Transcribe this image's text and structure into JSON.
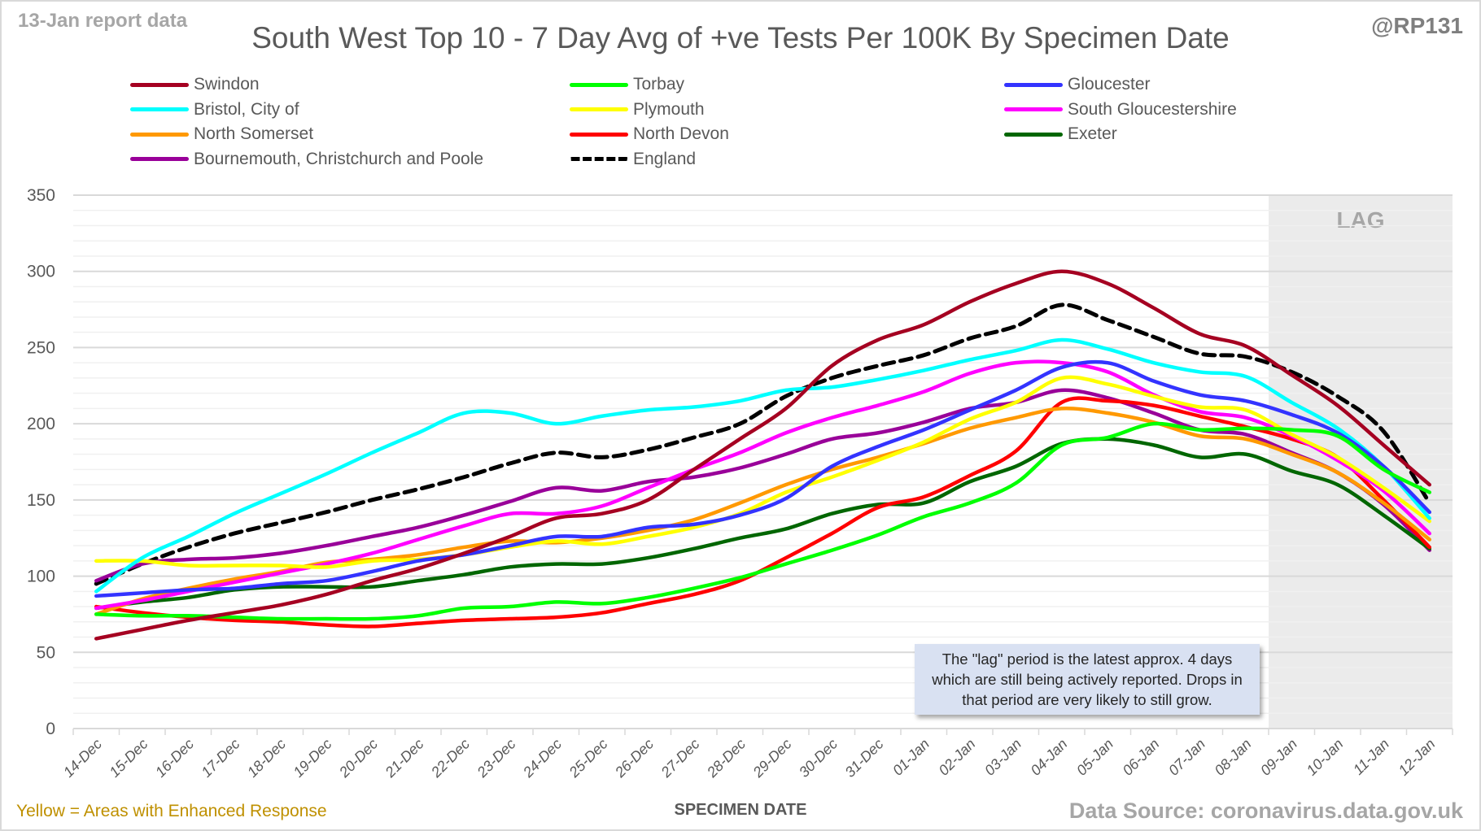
{
  "header": {
    "report_note": "13-Jan report data",
    "handle": "@RP131"
  },
  "footer": {
    "enhanced_note": "Yellow = Areas with Enhanced Response",
    "source": "Data Source: coronavirus.data.gov.uk"
  },
  "annotation": {
    "text": "The \"lag\" period is the latest approx. 4 days which are still being actively reported. Drops in that period are very likely to still grow."
  },
  "chart_data": {
    "type": "line",
    "title": "South West Top 10 - 7 Day Avg of +ve Tests Per 100K By Specimen Date",
    "xlabel": "SPECIMEN DATE",
    "ylabel": "",
    "ylim": [
      0,
      350
    ],
    "yticks": [
      "0",
      "50",
      "100",
      "150",
      "200",
      "250",
      "300",
      "350"
    ],
    "grid": true,
    "legend_position": "top",
    "lag_region": {
      "label": "LAG",
      "from": "09-Jan",
      "to": "12-Jan"
    },
    "x": [
      "14-Dec",
      "15-Dec",
      "16-Dec",
      "17-Dec",
      "18-Dec",
      "19-Dec",
      "20-Dec",
      "21-Dec",
      "22-Dec",
      "23-Dec",
      "24-Dec",
      "25-Dec",
      "26-Dec",
      "27-Dec",
      "28-Dec",
      "29-Dec",
      "30-Dec",
      "31-Dec",
      "01-Jan",
      "02-Jan",
      "03-Jan",
      "04-Jan",
      "05-Jan",
      "06-Jan",
      "07-Jan",
      "08-Jan",
      "09-Jan",
      "10-Jan",
      "11-Jan",
      "12-Jan"
    ],
    "series": [
      {
        "name": "Swindon",
        "color": "#a50021",
        "dashed": false,
        "values": [
          59,
          65,
          71,
          76,
          81,
          88,
          97,
          105,
          115,
          126,
          138,
          141,
          150,
          170,
          190,
          210,
          238,
          255,
          265,
          280,
          292,
          300,
          292,
          276,
          259,
          251,
          232,
          212,
          186,
          160
        ]
      },
      {
        "name": "Torbay",
        "color": "#00ff00",
        "dashed": false,
        "values": [
          75,
          74,
          74,
          73,
          72,
          72,
          72,
          74,
          79,
          80,
          83,
          82,
          86,
          92,
          99,
          108,
          117,
          127,
          139,
          148,
          161,
          186,
          191,
          200,
          196,
          197,
          196,
          192,
          170,
          155
        ]
      },
      {
        "name": "Gloucester",
        "color": "#3333ff",
        "dashed": false,
        "values": [
          87,
          89,
          91,
          92,
          95,
          97,
          103,
          110,
          114,
          120,
          126,
          126,
          132,
          134,
          140,
          151,
          172,
          185,
          196,
          209,
          222,
          237,
          240,
          228,
          219,
          215,
          206,
          194,
          172,
          142
        ]
      },
      {
        "name": "Bristol, City of",
        "color": "#00ffff",
        "dashed": false,
        "values": [
          90,
          112,
          126,
          141,
          154,
          167,
          181,
          194,
          207,
          207,
          200,
          205,
          209,
          211,
          215,
          222,
          224,
          229,
          235,
          242,
          248,
          255,
          249,
          240,
          234,
          231,
          214,
          197,
          172,
          138
        ]
      },
      {
        "name": "Plymouth",
        "color": "#ffff00",
        "dashed": false,
        "values": [
          110,
          110,
          107,
          107,
          107,
          106,
          110,
          111,
          114,
          119,
          123,
          121,
          126,
          132,
          141,
          155,
          165,
          176,
          188,
          203,
          214,
          230,
          226,
          218,
          211,
          209,
          193,
          178,
          158,
          136
        ]
      },
      {
        "name": "South Gloucestershire",
        "color": "#ff00ff",
        "dashed": false,
        "values": [
          79,
          84,
          90,
          96,
          102,
          108,
          115,
          124,
          133,
          141,
          141,
          146,
          158,
          170,
          181,
          194,
          204,
          212,
          221,
          233,
          240,
          240,
          234,
          219,
          208,
          204,
          192,
          176,
          156,
          128
        ]
      },
      {
        "name": "North Somerset",
        "color": "#ff9900",
        "dashed": false,
        "values": [
          75,
          85,
          92,
          98,
          103,
          109,
          111,
          114,
          119,
          123,
          122,
          125,
          130,
          137,
          148,
          160,
          170,
          178,
          187,
          197,
          204,
          210,
          207,
          201,
          192,
          190,
          180,
          168,
          148,
          124
        ]
      },
      {
        "name": "North Devon",
        "color": "#ff0000",
        "dashed": false,
        "values": [
          80,
          76,
          73,
          71,
          70,
          68,
          67,
          69,
          71,
          72,
          73,
          76,
          82,
          88,
          97,
          112,
          128,
          145,
          152,
          166,
          182,
          214,
          215,
          212,
          205,
          198,
          190,
          178,
          150,
          119
        ]
      },
      {
        "name": "Exeter",
        "color": "#006600",
        "dashed": false,
        "values": [
          79,
          83,
          86,
          91,
          93,
          93,
          93,
          97,
          101,
          106,
          108,
          108,
          112,
          118,
          125,
          131,
          141,
          147,
          148,
          162,
          172,
          187,
          190,
          186,
          178,
          180,
          169,
          160,
          140,
          118
        ]
      },
      {
        "name": "Bournemouth, Christchurch and Poole",
        "color": "#990099",
        "dashed": false,
        "values": [
          97,
          108,
          111,
          112,
          115,
          120,
          126,
          132,
          140,
          149,
          158,
          156,
          162,
          165,
          171,
          180,
          190,
          194,
          201,
          210,
          214,
          222,
          217,
          207,
          196,
          193,
          181,
          168,
          147,
          117
        ]
      },
      {
        "name": "England",
        "color": "#000000",
        "dashed": true,
        "values": [
          95,
          108,
          119,
          128,
          135,
          142,
          150,
          157,
          165,
          174,
          181,
          178,
          183,
          191,
          200,
          218,
          230,
          238,
          245,
          256,
          264,
          278,
          268,
          257,
          246,
          244,
          234,
          218,
          195,
          148
        ]
      }
    ]
  }
}
